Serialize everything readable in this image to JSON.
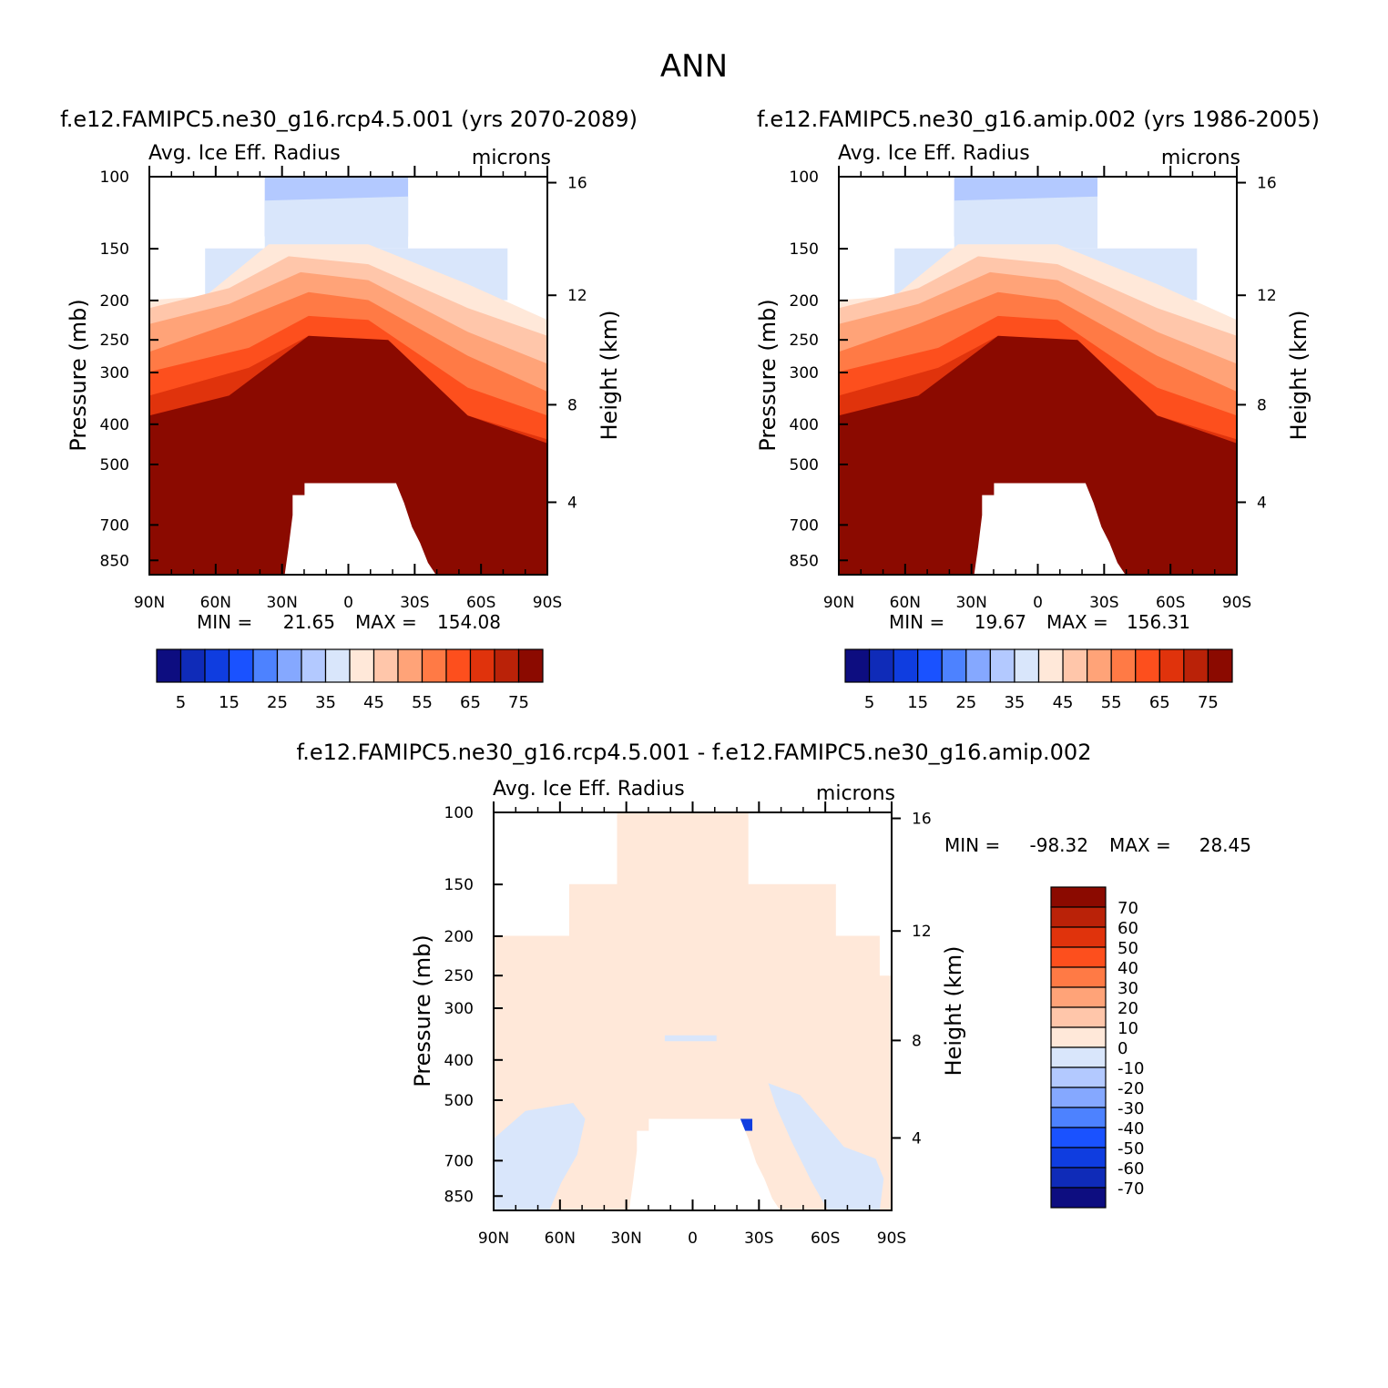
{
  "page_title": "ANN",
  "chart_data": [
    {
      "type": "heatmap",
      "id": "case",
      "title": "f.e12.FAMIPC5.ne30_g16.rcp4.5.001 (yrs 2070-2089)",
      "variable": "Avg. Ice Eff. Radius",
      "units": "microns",
      "ylabel": "Pressure (mb)",
      "y2label": "Height (km)",
      "x_ticks": [
        "90N",
        "60N",
        "30N",
        "0",
        "30S",
        "60S",
        "90S"
      ],
      "y_ticks": [
        "100",
        "150",
        "200",
        "250",
        "300",
        "400",
        "500",
        "700",
        "850"
      ],
      "y2_ticks": [
        "16",
        "12",
        "8",
        "4"
      ],
      "stats": {
        "min_label": "MIN =",
        "min": "21.65",
        "max_label": "MAX =",
        "max": "154.08"
      },
      "colorbar": {
        "orientation": "horizontal",
        "levels": [
          "5",
          "15",
          "25",
          "35",
          "45",
          "55",
          "65",
          "75"
        ],
        "colors": [
          "#0d0d80",
          "#0f2bb8",
          "#0f3de0",
          "#1a52ff",
          "#4d82ff",
          "#85a8ff",
          "#b3c9ff",
          "#d9e6fb",
          "#ffe8d9",
          "#ffc6aa",
          "#ffa378",
          "#ff7a45",
          "#fd4f1d",
          "#e0330c",
          "#ba2208",
          "#8b0a00"
        ]
      }
    },
    {
      "type": "heatmap",
      "id": "control",
      "title": "f.e12.FAMIPC5.ne30_g16.amip.002 (yrs 1986-2005)",
      "variable": "Avg. Ice Eff. Radius",
      "units": "microns",
      "ylabel": "Pressure (mb)",
      "y2label": "Height (km)",
      "x_ticks": [
        "90N",
        "60N",
        "30N",
        "0",
        "30S",
        "60S",
        "90S"
      ],
      "y_ticks": [
        "100",
        "150",
        "200",
        "250",
        "300",
        "400",
        "500",
        "700",
        "850"
      ],
      "y2_ticks": [
        "16",
        "12",
        "8",
        "4"
      ],
      "stats": {
        "min_label": "MIN =",
        "min": "19.67",
        "max_label": "MAX =",
        "max": "156.31"
      },
      "colorbar": {
        "orientation": "horizontal",
        "levels": [
          "5",
          "15",
          "25",
          "35",
          "45",
          "55",
          "65",
          "75"
        ],
        "colors": [
          "#0d0d80",
          "#0f2bb8",
          "#0f3de0",
          "#1a52ff",
          "#4d82ff",
          "#85a8ff",
          "#b3c9ff",
          "#d9e6fb",
          "#ffe8d9",
          "#ffc6aa",
          "#ffa378",
          "#ff7a45",
          "#fd4f1d",
          "#e0330c",
          "#ba2208",
          "#8b0a00"
        ]
      }
    },
    {
      "type": "heatmap",
      "id": "diff",
      "title": "f.e12.FAMIPC5.ne30_g16.rcp4.5.001 - f.e12.FAMIPC5.ne30_g16.amip.002",
      "variable": "Avg. Ice Eff. Radius",
      "units": "microns",
      "ylabel": "Pressure (mb)",
      "y2label": "Height (km)",
      "x_ticks": [
        "90N",
        "60N",
        "30N",
        "0",
        "30S",
        "60S",
        "90S"
      ],
      "y_ticks": [
        "100",
        "150",
        "200",
        "250",
        "300",
        "400",
        "500",
        "700",
        "850"
      ],
      "y2_ticks": [
        "16",
        "12",
        "8",
        "4"
      ],
      "stats": {
        "min_label": "MIN =",
        "min": "-98.32",
        "max_label": "MAX =",
        "max": "28.45"
      },
      "colorbar": {
        "orientation": "vertical",
        "levels": [
          "70",
          "60",
          "50",
          "40",
          "30",
          "20",
          "10",
          "0",
          "-10",
          "-20",
          "-30",
          "-40",
          "-50",
          "-60",
          "-70"
        ],
        "colors": [
          "#8b0a00",
          "#ba2208",
          "#e0330c",
          "#fd4f1d",
          "#ff7a45",
          "#ffa378",
          "#ffc6aa",
          "#ffe8d9",
          "#d9e6fb",
          "#b3c9ff",
          "#85a8ff",
          "#4d82ff",
          "#1a52ff",
          "#0f3de0",
          "#0f2bb8",
          "#0d0d80"
        ]
      }
    }
  ]
}
